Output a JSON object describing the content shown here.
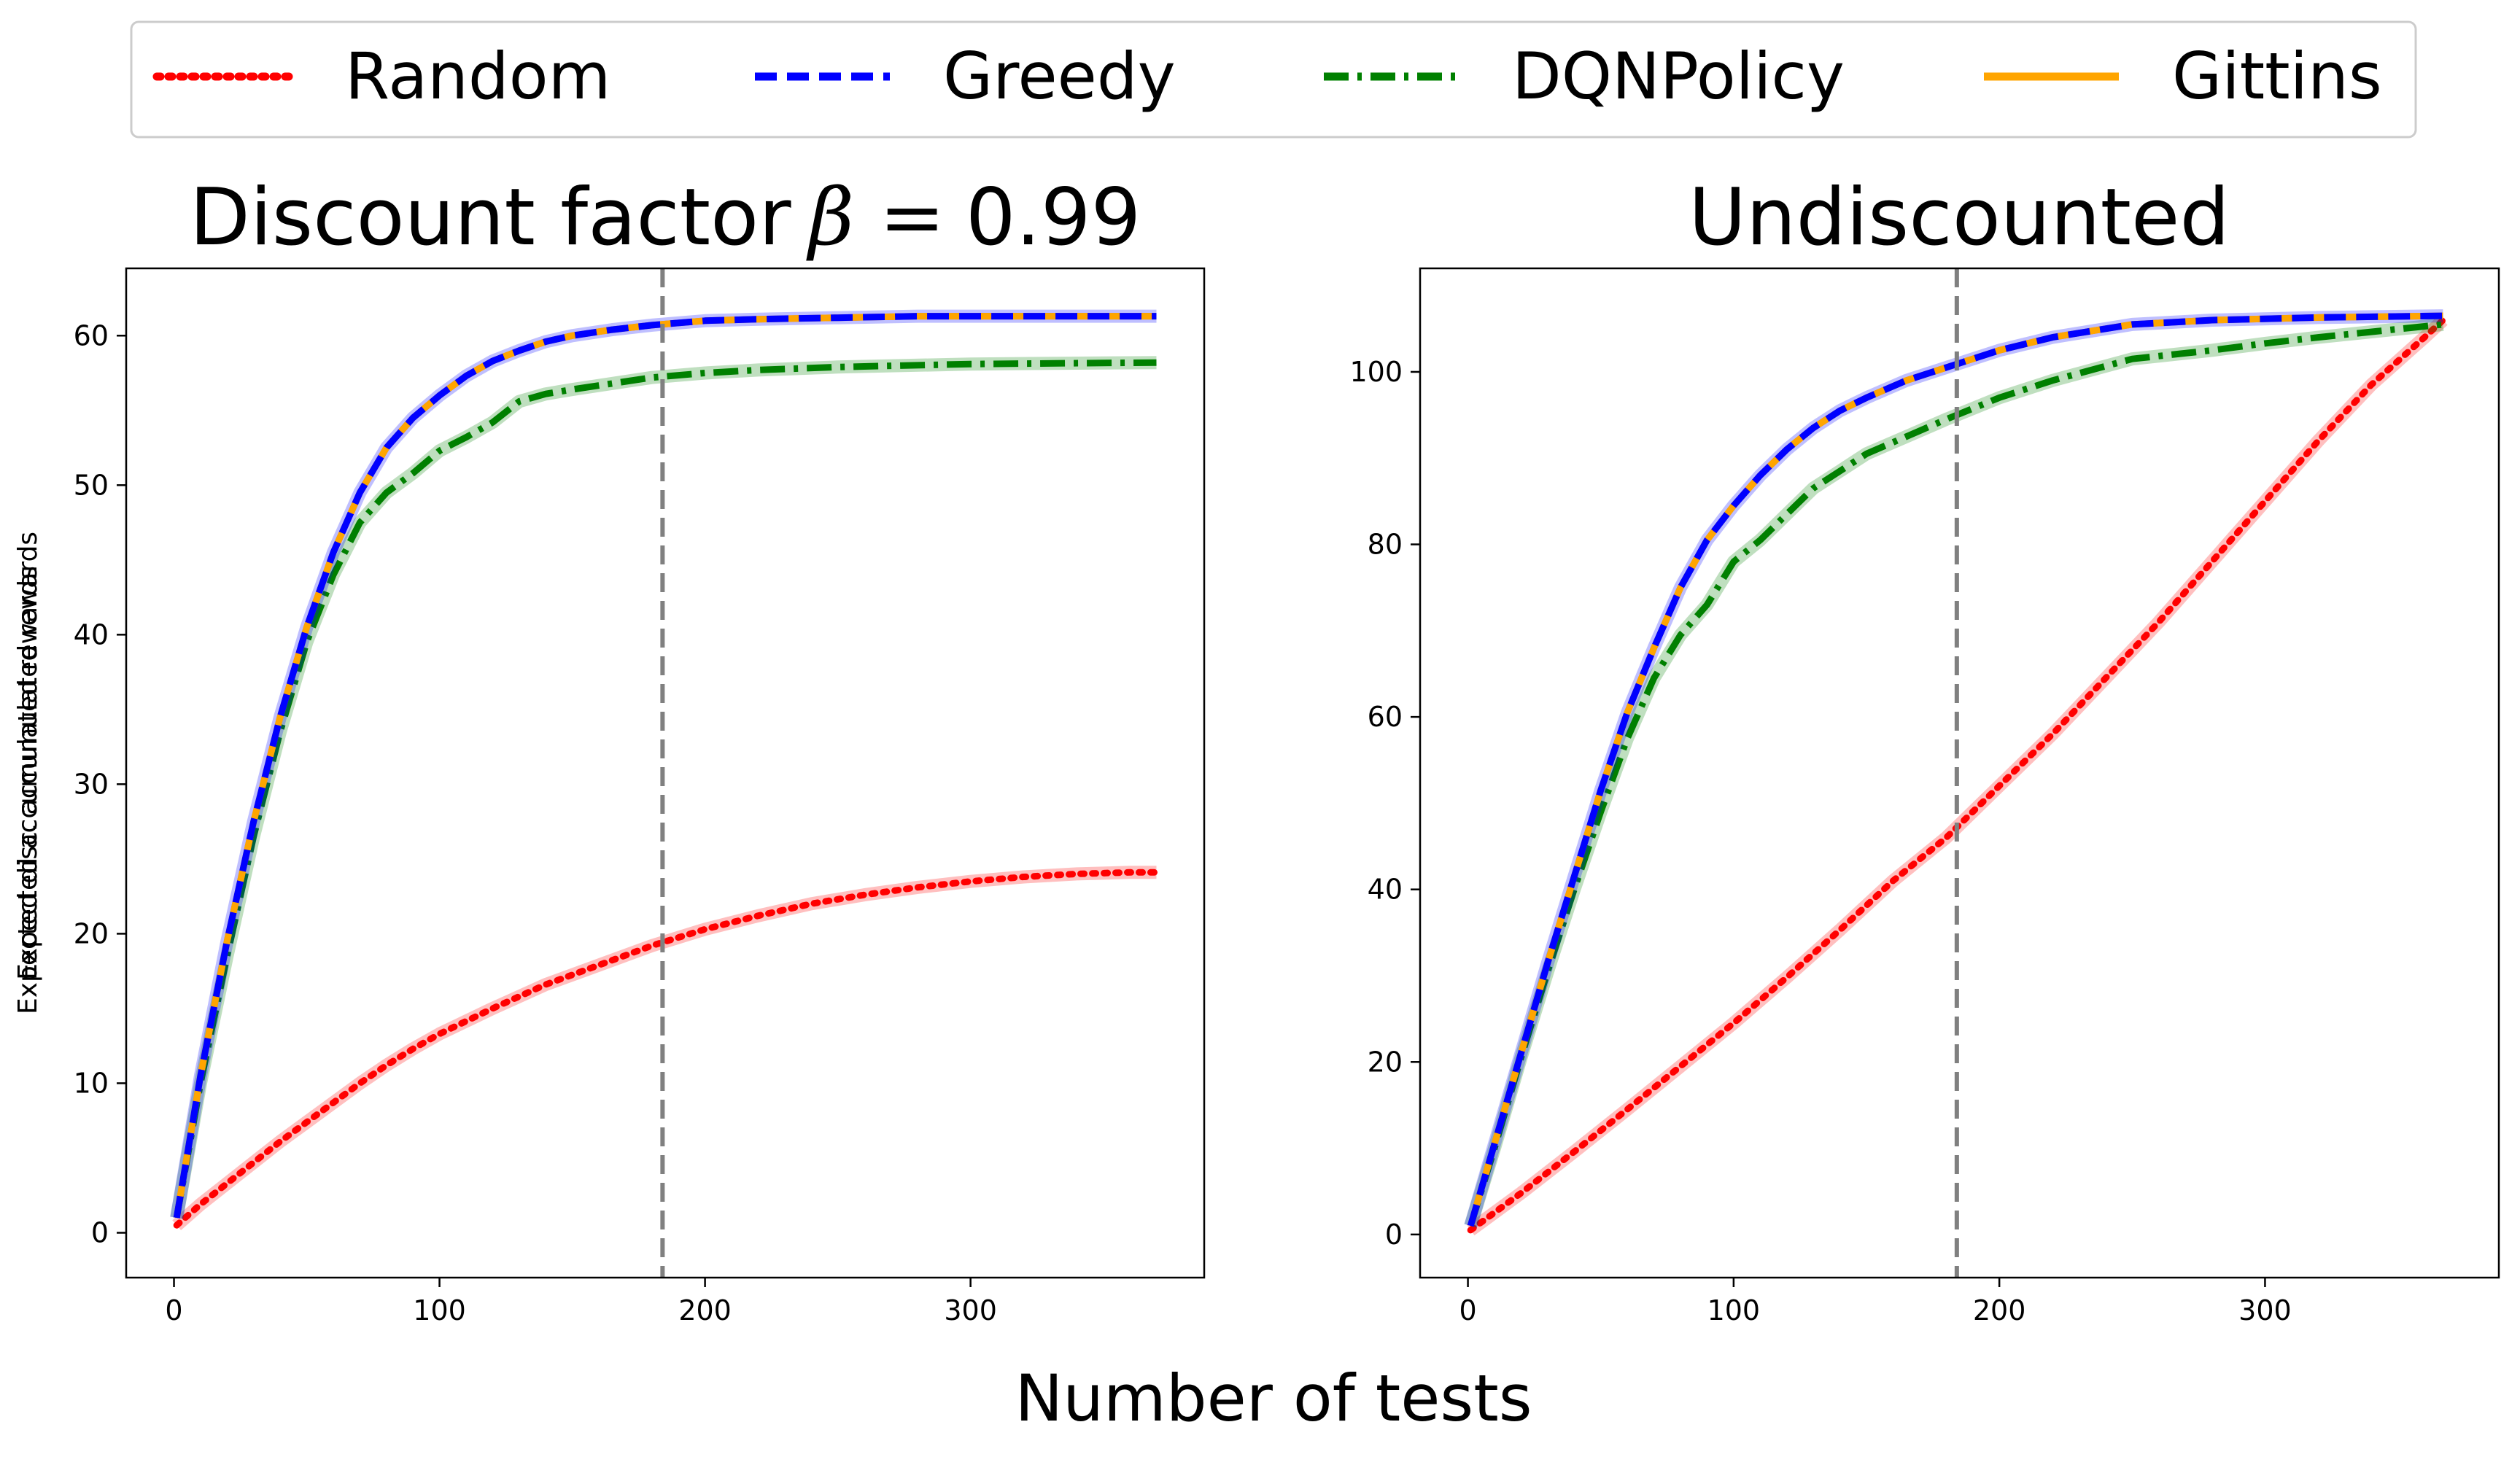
{
  "figure": {
    "xlabel": "Number of tests"
  },
  "legend": {
    "placement": "top-center",
    "entries": [
      {
        "name": "Random",
        "color": "#ff0000",
        "style": "dotted"
      },
      {
        "name": "Greedy",
        "color": "#0000ff",
        "style": "dashed"
      },
      {
        "name": "DQNPolicy",
        "color": "#008000",
        "style": "dash-dot"
      },
      {
        "name": "Gittins",
        "color": "#ffa500",
        "style": "solid"
      }
    ]
  },
  "chart_data": [
    {
      "type": "line",
      "title": "Discount factor",
      "title_math": "β =",
      "title_value": "0.99",
      "xlabel": "",
      "ylabel": "Expected disc. accumulated rewards",
      "xlim": [
        -18,
        388
      ],
      "ylim": [
        -3,
        64.5
      ],
      "xticks": [
        0,
        100,
        200,
        300
      ],
      "yticks": [
        0,
        10,
        20,
        30,
        40,
        50,
        60
      ],
      "vline_x": 184,
      "grid": false,
      "series": [
        {
          "name": "Random",
          "x": [
            1,
            10,
            20,
            30,
            40,
            50,
            60,
            70,
            80,
            90,
            100,
            120,
            140,
            160,
            180,
            200,
            220,
            240,
            260,
            280,
            300,
            320,
            340,
            360,
            370
          ],
          "y": [
            0.5,
            1.9,
            3.3,
            4.7,
            6.1,
            7.4,
            8.7,
            10.0,
            11.2,
            12.3,
            13.3,
            15.0,
            16.6,
            17.9,
            19.2,
            20.3,
            21.2,
            22.0,
            22.6,
            23.1,
            23.5,
            23.8,
            24.0,
            24.1,
            24.1
          ]
        },
        {
          "name": "Greedy",
          "x": [
            1,
            10,
            20,
            30,
            40,
            50,
            60,
            70,
            80,
            90,
            100,
            110,
            120,
            130,
            140,
            150,
            165,
            180,
            200,
            220,
            250,
            280,
            320,
            370
          ],
          "y": [
            1.0,
            10.5,
            19.5,
            27.5,
            34.5,
            40.5,
            45.5,
            49.5,
            52.5,
            54.5,
            56.0,
            57.3,
            58.3,
            59.0,
            59.6,
            60.0,
            60.4,
            60.7,
            61.0,
            61.1,
            61.2,
            61.3,
            61.3,
            61.3
          ]
        },
        {
          "name": "DQNPolicy",
          "x": [
            1,
            10,
            20,
            30,
            40,
            50,
            60,
            70,
            80,
            90,
            100,
            110,
            120,
            130,
            140,
            150,
            165,
            180,
            200,
            220,
            250,
            300,
            370
          ],
          "y": [
            1.0,
            10.0,
            18.5,
            26.5,
            33.5,
            39.5,
            44.0,
            47.5,
            49.5,
            50.8,
            52.3,
            53.2,
            54.2,
            55.6,
            56.1,
            56.4,
            56.8,
            57.2,
            57.5,
            57.7,
            57.9,
            58.1,
            58.2
          ]
        },
        {
          "name": "Gittins",
          "x": [
            1,
            10,
            20,
            30,
            40,
            50,
            60,
            70,
            80,
            90,
            100,
            110,
            120,
            130,
            140,
            150,
            165,
            180,
            200,
            220,
            250,
            280,
            320,
            370
          ],
          "y": [
            1.0,
            10.5,
            19.5,
            27.5,
            34.5,
            40.5,
            45.5,
            49.5,
            52.5,
            54.5,
            56.0,
            57.3,
            58.3,
            59.0,
            59.6,
            60.0,
            60.4,
            60.7,
            61.0,
            61.1,
            61.2,
            61.3,
            61.3,
            61.3
          ]
        }
      ]
    },
    {
      "type": "line",
      "title": "Undiscounted",
      "xlabel": "",
      "ylabel": "Expected accumulated rewards",
      "xlim": [
        -18,
        388
      ],
      "ylim": [
        -5,
        112
      ],
      "xticks": [
        0,
        100,
        200,
        300
      ],
      "yticks": [
        0,
        20,
        40,
        60,
        80,
        100
      ],
      "vline_x": 184,
      "grid": false,
      "series": [
        {
          "name": "Random",
          "x": [
            1,
            20,
            40,
            60,
            80,
            100,
            120,
            140,
            160,
            180,
            200,
            220,
            240,
            260,
            280,
            300,
            320,
            340,
            360,
            367
          ],
          "y": [
            0.5,
            4.8,
            9.6,
            14.5,
            19.5,
            24.5,
            29.8,
            35.3,
            41.0,
            46.0,
            52.0,
            58.0,
            64.5,
            71.0,
            78.0,
            85.0,
            92.0,
            98.5,
            104.0,
            106.0
          ]
        },
        {
          "name": "Greedy",
          "x": [
            1,
            10,
            20,
            30,
            40,
            50,
            60,
            70,
            80,
            90,
            100,
            110,
            120,
            130,
            140,
            150,
            165,
            180,
            200,
            220,
            250,
            280,
            320,
            367
          ],
          "y": [
            1.0,
            10.5,
            21.0,
            31.5,
            41.5,
            51.5,
            60.5,
            68.0,
            75.0,
            80.5,
            84.5,
            88.0,
            91.0,
            93.5,
            95.5,
            97.0,
            99.0,
            100.5,
            102.5,
            104.0,
            105.5,
            106.0,
            106.3,
            106.5
          ]
        },
        {
          "name": "DQNPolicy",
          "x": [
            1,
            10,
            20,
            30,
            40,
            50,
            60,
            70,
            80,
            90,
            100,
            110,
            120,
            130,
            140,
            150,
            165,
            180,
            200,
            220,
            250,
            280,
            300,
            320,
            367
          ],
          "y": [
            1.0,
            10.0,
            20.5,
            30.5,
            40.0,
            49.0,
            57.5,
            64.5,
            69.5,
            73.0,
            78.0,
            80.5,
            83.5,
            86.5,
            88.5,
            90.5,
            92.5,
            94.5,
            97.0,
            99.0,
            101.5,
            102.5,
            103.3,
            104.0,
            105.5
          ]
        },
        {
          "name": "Gittins",
          "x": [
            1,
            10,
            20,
            30,
            40,
            50,
            60,
            70,
            80,
            90,
            100,
            110,
            120,
            130,
            140,
            150,
            165,
            180,
            200,
            220,
            250,
            280,
            320,
            367
          ],
          "y": [
            1.0,
            10.5,
            21.0,
            31.5,
            41.5,
            51.5,
            60.5,
            68.0,
            75.0,
            80.5,
            84.5,
            88.0,
            91.0,
            93.5,
            95.5,
            97.0,
            99.0,
            100.5,
            102.5,
            104.0,
            105.5,
            106.0,
            106.3,
            106.5
          ]
        }
      ]
    }
  ]
}
